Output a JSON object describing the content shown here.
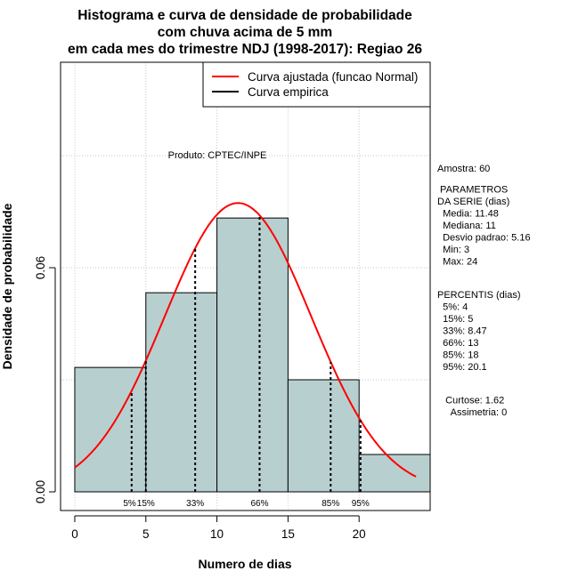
{
  "chart_data": {
    "type": "bar",
    "title": [
      "Histograma e curva de densidade de probabilidade",
      "com chuva acima de 5 mm",
      "em cada mes do trimestre NDJ (1998-2017): Regiao 26"
    ],
    "xlabel": "Numero de dias",
    "ylabel": "Densidade de probabilidade",
    "xlim": [
      -1,
      25
    ],
    "ylim": [
      -0.005,
      0.115
    ],
    "x_ticks": [
      0,
      5,
      10,
      15,
      20
    ],
    "y_ticks": [
      0.0,
      0.06
    ],
    "y_tick_labels": [
      "0.00",
      "0.06"
    ],
    "grid_x": [
      0,
      5,
      10,
      15,
      20
    ],
    "grid_y": [
      0.03,
      0.06,
      0.09
    ],
    "bins": [
      {
        "from": 0,
        "to": 5,
        "density": 0.0333
      },
      {
        "from": 5,
        "to": 10,
        "density": 0.0533
      },
      {
        "from": 10,
        "to": 15,
        "density": 0.0733
      },
      {
        "from": 15,
        "to": 20,
        "density": 0.03
      },
      {
        "from": 20,
        "to": 25,
        "density": 0.01
      }
    ],
    "normal_curve": {
      "mean": 11.48,
      "sd": 5.16,
      "x_from": 0,
      "x_to": 24
    },
    "percentile_lines": [
      {
        "label": "5%",
        "x": 4
      },
      {
        "label": "15%",
        "x": 5
      },
      {
        "label": "33%",
        "x": 8.47
      },
      {
        "label": "66%",
        "x": 13
      },
      {
        "label": "85%",
        "x": 18
      },
      {
        "label": "95%",
        "x": 20.1
      }
    ],
    "legend": [
      {
        "label": "Curva ajustada (funcao Normal)",
        "color": "#ff0000"
      },
      {
        "label": "Curva empirica",
        "color": "#000000"
      }
    ],
    "bar_color": "#b8cfcf"
  },
  "annotations": {
    "produto": "Produto: CPTEC/INPE",
    "stats": [
      "Amostra: 60",
      " PARAMETROS",
      "DA SERIE (dias)",
      "  Media: 11.48",
      "  Mediana: 11",
      "  Desvio padrao: 5.16",
      "  Min: 3",
      "  Max: 24",
      "",
      "PERCENTIS (dias)",
      "  5%: 4",
      "  15%: 5",
      "  33%: 8.47",
      "  66%: 13",
      "  85%: 18",
      "  95%: 20.1",
      "",
      "   Curtose: 1.62",
      "     Assimetria: 0"
    ]
  }
}
